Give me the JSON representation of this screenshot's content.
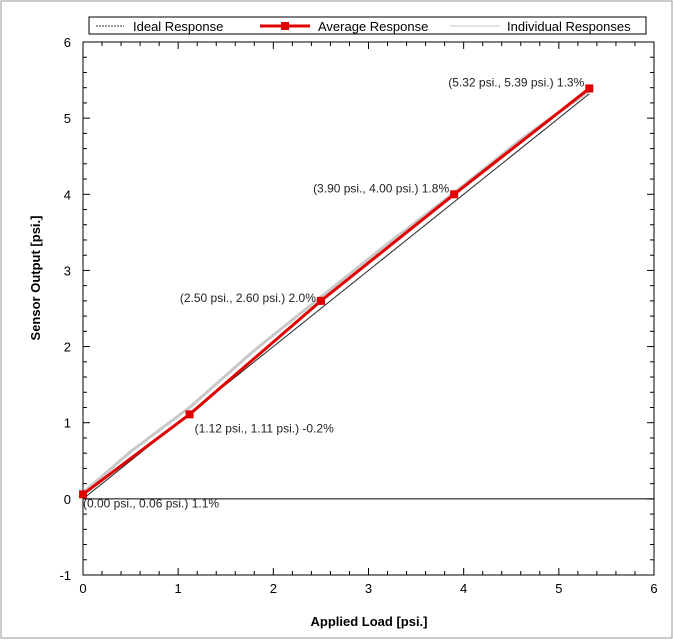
{
  "chart_data": {
    "type": "line",
    "xlabel": "Applied Load [psi.]",
    "ylabel": "Sensor Output [psi.]",
    "xlim": [
      0,
      6
    ],
    "ylim": [
      -1,
      6
    ],
    "x_ticks": [
      "0",
      "1",
      "2",
      "3",
      "4",
      "5",
      "6"
    ],
    "y_ticks": [
      "-1",
      "0",
      "1",
      "2",
      "3",
      "4",
      "5",
      "6"
    ],
    "grid": false,
    "legend": {
      "placement": "top",
      "entries": [
        {
          "label": "Ideal Response",
          "color": "#333333",
          "style": "dashed"
        },
        {
          "label": "Average Response",
          "color": "#e00000",
          "style": "solid-square-markers"
        },
        {
          "label": "Individual Responses",
          "color": "#c8c8c8",
          "style": "solid-thin"
        }
      ]
    },
    "series": [
      {
        "name": "Ideal Response",
        "color": "#222222",
        "x": [
          0,
          5.32
        ],
        "y": [
          0,
          5.32
        ]
      },
      {
        "name": "Individual Responses",
        "color": "#c8c8c8",
        "x": [
          0,
          0.5,
          1.12,
          1.8,
          2.5,
          3.2,
          3.9,
          4.6,
          5.32
        ],
        "y": [
          0.08,
          0.62,
          1.2,
          1.95,
          2.65,
          3.35,
          4.02,
          4.72,
          5.36
        ]
      },
      {
        "name": "Average Response",
        "color": "#e00000",
        "x": [
          0.0,
          1.12,
          2.5,
          3.9,
          5.32
        ],
        "y": [
          0.06,
          1.11,
          2.6,
          4.0,
          5.39
        ]
      }
    ],
    "annotations": [
      {
        "text": "(0.00 psi., 0.06 psi.) 1.1%",
        "x": 0.0,
        "y": 0.06
      },
      {
        "text": "(1.12 psi., 1.11 psi.) -0.2%",
        "x": 1.12,
        "y": 1.11
      },
      {
        "text": "(2.50 psi., 2.60 psi.) 2.0%",
        "x": 2.5,
        "y": 2.6
      },
      {
        "text": "(3.90 psi., 4.00 psi.) 1.8%",
        "x": 3.9,
        "y": 4.0
      },
      {
        "text": "(5.32 psi., 5.39 psi.) 1.3%",
        "x": 5.32,
        "y": 5.39
      }
    ]
  }
}
